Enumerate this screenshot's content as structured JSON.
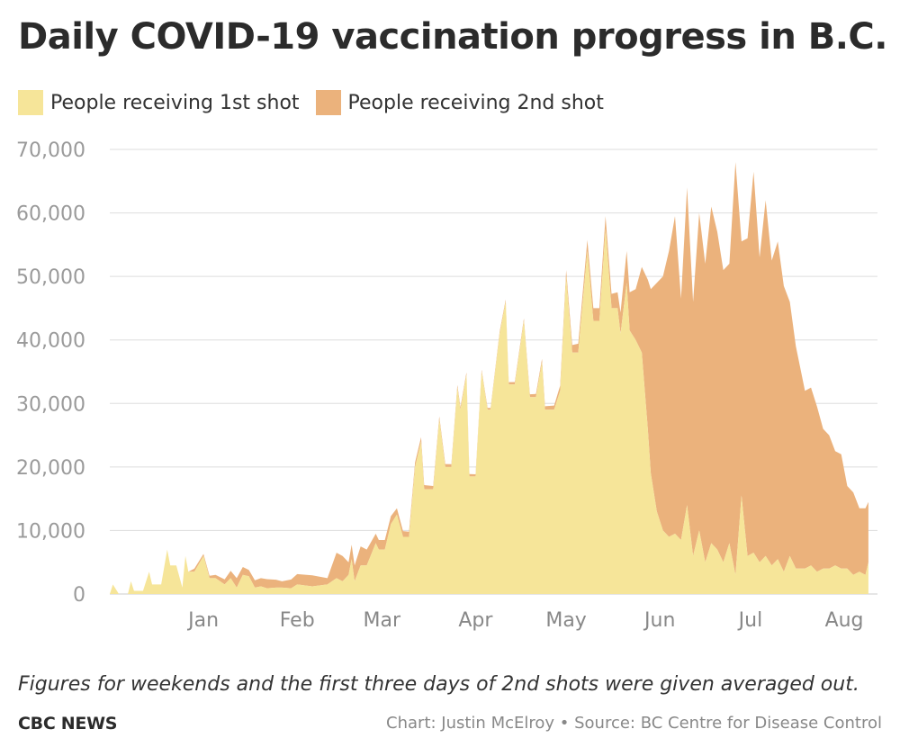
{
  "colors": {
    "first": "#f6e599",
    "second": "#ebb27c",
    "grid": "#dddddd",
    "tick": "#9a9a9a"
  },
  "chart_data": {
    "type": "area",
    "stacked": true,
    "title": "Daily COVID-19 vaccination progress in B.C.",
    "xlabel": "",
    "ylabel": "",
    "ylim": [
      0,
      70000
    ],
    "xlim": [
      "2020-12-15",
      "2021-08-26"
    ],
    "grid": true,
    "legend_position": "top-left",
    "yticks": [
      {
        "value": 0,
        "label": "0"
      },
      {
        "value": 10000,
        "label": "10,000"
      },
      {
        "value": 20000,
        "label": "20,000"
      },
      {
        "value": 30000,
        "label": "30,000"
      },
      {
        "value": 40000,
        "label": "40,000"
      },
      {
        "value": 50000,
        "label": "50,000"
      },
      {
        "value": 60000,
        "label": "60,000"
      },
      {
        "value": 70000,
        "label": "70,000"
      }
    ],
    "xticks": [
      {
        "date": "2021-01-15",
        "label": "Jan"
      },
      {
        "date": "2021-02-15",
        "label": "Feb"
      },
      {
        "date": "2021-03-15",
        "label": "Mar"
      },
      {
        "date": "2021-04-15",
        "label": "Apr"
      },
      {
        "date": "2021-05-15",
        "label": "May"
      },
      {
        "date": "2021-06-15",
        "label": "Jun"
      },
      {
        "date": "2021-07-15",
        "label": "Jul"
      },
      {
        "date": "2021-08-15",
        "label": "Aug"
      }
    ],
    "series": [
      {
        "name": "People receiving 1st shot",
        "points": [
          [
            "2020-12-15",
            0
          ],
          [
            "2020-12-16",
            1500
          ],
          [
            "2020-12-18",
            0
          ],
          [
            "2020-12-21",
            0
          ],
          [
            "2020-12-22",
            2000
          ],
          [
            "2020-12-23",
            500
          ],
          [
            "2020-12-26",
            500
          ],
          [
            "2020-12-28",
            3500
          ],
          [
            "2020-12-29",
            1500
          ],
          [
            "2021-01-01",
            1500
          ],
          [
            "2021-01-03",
            7000
          ],
          [
            "2021-01-04",
            4500
          ],
          [
            "2021-01-06",
            4500
          ],
          [
            "2021-01-08",
            1000
          ],
          [
            "2021-01-09",
            6000
          ],
          [
            "2021-01-10",
            3500
          ],
          [
            "2021-01-12",
            3500
          ],
          [
            "2021-01-15",
            6000
          ],
          [
            "2021-01-17",
            2500
          ],
          [
            "2021-01-19",
            2500
          ],
          [
            "2021-01-22",
            1500
          ],
          [
            "2021-01-24",
            2500
          ],
          [
            "2021-01-26",
            1000
          ],
          [
            "2021-01-28",
            3000
          ],
          [
            "2021-01-30",
            2800
          ],
          [
            "2021-02-01",
            1000
          ],
          [
            "2021-02-03",
            1200
          ],
          [
            "2021-02-05",
            900
          ],
          [
            "2021-02-08",
            1000
          ],
          [
            "2021-02-10",
            1000
          ],
          [
            "2021-02-13",
            900
          ],
          [
            "2021-02-15",
            1500
          ],
          [
            "2021-02-20",
            1200
          ],
          [
            "2021-02-25",
            1500
          ],
          [
            "2021-02-28",
            2500
          ],
          [
            "2021-03-02",
            2000
          ],
          [
            "2021-03-04",
            3000
          ],
          [
            "2021-03-05",
            5500
          ],
          [
            "2021-03-06",
            2000
          ],
          [
            "2021-03-08",
            4500
          ],
          [
            "2021-03-10",
            4500
          ],
          [
            "2021-03-13",
            8000
          ],
          [
            "2021-03-14",
            7000
          ],
          [
            "2021-03-16",
            7000
          ],
          [
            "2021-03-18",
            11000
          ],
          [
            "2021-03-20",
            12500
          ],
          [
            "2021-03-22",
            9000
          ],
          [
            "2021-03-24",
            9000
          ],
          [
            "2021-03-26",
            20000
          ],
          [
            "2021-03-28",
            24000
          ],
          [
            "2021-03-29",
            16500
          ],
          [
            "2021-04-01",
            16500
          ],
          [
            "2021-04-03",
            27500
          ],
          [
            "2021-04-05",
            20000
          ],
          [
            "2021-04-07",
            20000
          ],
          [
            "2021-04-09",
            32500
          ],
          [
            "2021-04-10",
            29000
          ],
          [
            "2021-04-12",
            34500
          ],
          [
            "2021-04-13",
            18500
          ],
          [
            "2021-04-15",
            18500
          ],
          [
            "2021-04-17",
            35000
          ],
          [
            "2021-04-19",
            29000
          ],
          [
            "2021-04-20",
            29000
          ],
          [
            "2021-04-23",
            41000
          ],
          [
            "2021-04-25",
            46000
          ],
          [
            "2021-04-26",
            33000
          ],
          [
            "2021-04-28",
            33000
          ],
          [
            "2021-05-01",
            43000
          ],
          [
            "2021-05-03",
            31000
          ],
          [
            "2021-05-05",
            31000
          ],
          [
            "2021-05-07",
            36500
          ],
          [
            "2021-05-08",
            29000
          ],
          [
            "2021-05-11",
            29000
          ],
          [
            "2021-05-13",
            32000
          ],
          [
            "2021-05-15",
            50000
          ],
          [
            "2021-05-17",
            38000
          ],
          [
            "2021-05-19",
            38000
          ],
          [
            "2021-05-22",
            54000
          ],
          [
            "2021-05-24",
            43000
          ],
          [
            "2021-05-26",
            43000
          ],
          [
            "2021-05-28",
            57500
          ],
          [
            "2021-05-30",
            45000
          ],
          [
            "2021-06-01",
            45000
          ],
          [
            "2021-06-02",
            41000
          ],
          [
            "2021-06-04",
            49000
          ],
          [
            "2021-06-05",
            41500
          ],
          [
            "2021-06-07",
            40000
          ],
          [
            "2021-06-09",
            38000
          ],
          [
            "2021-06-11",
            26000
          ],
          [
            "2021-06-12",
            19000
          ],
          [
            "2021-06-14",
            13000
          ],
          [
            "2021-06-16",
            10000
          ],
          [
            "2021-06-18",
            9000
          ],
          [
            "2021-06-20",
            9500
          ],
          [
            "2021-06-22",
            8500
          ],
          [
            "2021-06-24",
            14000
          ],
          [
            "2021-06-26",
            6000
          ],
          [
            "2021-06-28",
            10000
          ],
          [
            "2021-06-30",
            5000
          ],
          [
            "2021-07-02",
            8000
          ],
          [
            "2021-07-04",
            7000
          ],
          [
            "2021-07-06",
            5000
          ],
          [
            "2021-07-08",
            8000
          ],
          [
            "2021-07-10",
            3000
          ],
          [
            "2021-07-12",
            15500
          ],
          [
            "2021-07-14",
            6000
          ],
          [
            "2021-07-16",
            6500
          ],
          [
            "2021-07-18",
            5000
          ],
          [
            "2021-07-20",
            6000
          ],
          [
            "2021-07-22",
            4500
          ],
          [
            "2021-07-24",
            5500
          ],
          [
            "2021-07-26",
            3500
          ],
          [
            "2021-07-28",
            6000
          ],
          [
            "2021-07-30",
            4000
          ],
          [
            "2021-08-02",
            4000
          ],
          [
            "2021-08-04",
            4500
          ],
          [
            "2021-08-06",
            3500
          ],
          [
            "2021-08-08",
            4000
          ],
          [
            "2021-08-10",
            4000
          ],
          [
            "2021-08-12",
            4500
          ],
          [
            "2021-08-14",
            4000
          ],
          [
            "2021-08-16",
            4000
          ],
          [
            "2021-08-18",
            3000
          ],
          [
            "2021-08-20",
            3500
          ],
          [
            "2021-08-22",
            3000
          ],
          [
            "2021-08-23",
            5000
          ]
        ]
      },
      {
        "name": "People receiving 2nd shot",
        "points": [
          [
            "2020-12-15",
            0
          ],
          [
            "2021-01-01",
            0
          ],
          [
            "2021-01-10",
            0
          ],
          [
            "2021-01-12",
            500
          ],
          [
            "2021-01-15",
            300
          ],
          [
            "2021-01-18",
            400
          ],
          [
            "2021-01-22",
            800
          ],
          [
            "2021-01-26",
            1500
          ],
          [
            "2021-01-30",
            1000
          ],
          [
            "2021-02-03",
            1300
          ],
          [
            "2021-02-06",
            1500
          ],
          [
            "2021-02-10",
            1000
          ],
          [
            "2021-02-14",
            1500
          ],
          [
            "2021-02-18",
            2000
          ],
          [
            "2021-02-22",
            1500
          ],
          [
            "2021-02-25",
            1000
          ],
          [
            "2021-02-28",
            4000
          ],
          [
            "2021-03-02",
            4000
          ],
          [
            "2021-03-04",
            2000
          ],
          [
            "2021-03-06",
            2500
          ],
          [
            "2021-03-08",
            3000
          ],
          [
            "2021-03-10",
            2500
          ],
          [
            "2021-03-13",
            1500
          ],
          [
            "2021-03-16",
            1500
          ],
          [
            "2021-03-20",
            1000
          ],
          [
            "2021-03-24",
            800
          ],
          [
            "2021-03-28",
            700
          ],
          [
            "2021-04-01",
            500
          ],
          [
            "2021-04-10",
            400
          ],
          [
            "2021-04-20",
            300
          ],
          [
            "2021-05-01",
            400
          ],
          [
            "2021-05-10",
            600
          ],
          [
            "2021-05-13",
            800
          ],
          [
            "2021-05-15",
            1000
          ],
          [
            "2021-05-17",
            1200
          ],
          [
            "2021-05-20",
            1500
          ],
          [
            "2021-05-24",
            2000
          ],
          [
            "2021-05-28",
            2000
          ],
          [
            "2021-06-01",
            2500
          ],
          [
            "2021-06-04",
            5000
          ],
          [
            "2021-06-06",
            7000
          ],
          [
            "2021-06-08",
            9000
          ],
          [
            "2021-06-10",
            18000
          ],
          [
            "2021-06-12",
            29000
          ],
          [
            "2021-06-14",
            36000
          ],
          [
            "2021-06-16",
            40000
          ],
          [
            "2021-06-18",
            45000
          ],
          [
            "2021-06-20",
            50000
          ],
          [
            "2021-06-22",
            38000
          ],
          [
            "2021-06-24",
            50000
          ],
          [
            "2021-06-26",
            40000
          ],
          [
            "2021-06-28",
            50000
          ],
          [
            "2021-06-30",
            47000
          ],
          [
            "2021-07-02",
            53000
          ],
          [
            "2021-07-04",
            50000
          ],
          [
            "2021-07-06",
            46000
          ],
          [
            "2021-07-08",
            44000
          ],
          [
            "2021-07-10",
            65000
          ],
          [
            "2021-07-12",
            40000
          ],
          [
            "2021-07-14",
            50000
          ],
          [
            "2021-07-16",
            60000
          ],
          [
            "2021-07-18",
            48000
          ],
          [
            "2021-07-20",
            56000
          ],
          [
            "2021-07-22",
            48000
          ],
          [
            "2021-07-24",
            50000
          ],
          [
            "2021-07-26",
            45000
          ],
          [
            "2021-07-28",
            40000
          ],
          [
            "2021-07-30",
            35000
          ],
          [
            "2021-08-02",
            28000
          ],
          [
            "2021-08-04",
            28000
          ],
          [
            "2021-08-06",
            26000
          ],
          [
            "2021-08-08",
            22000
          ],
          [
            "2021-08-10",
            21000
          ],
          [
            "2021-08-12",
            18000
          ],
          [
            "2021-08-14",
            18000
          ],
          [
            "2021-08-16",
            13000
          ],
          [
            "2021-08-18",
            13000
          ],
          [
            "2021-08-20",
            10000
          ],
          [
            "2021-08-22",
            10500
          ],
          [
            "2021-08-23",
            9500
          ]
        ]
      }
    ]
  },
  "footer": {
    "note": "Figures for weekends and the first three days of 2nd shots were given averaged out.",
    "brand": "CBC NEWS",
    "credit": "Chart: Justin McElroy • Source: BC Centre for Disease Control"
  }
}
